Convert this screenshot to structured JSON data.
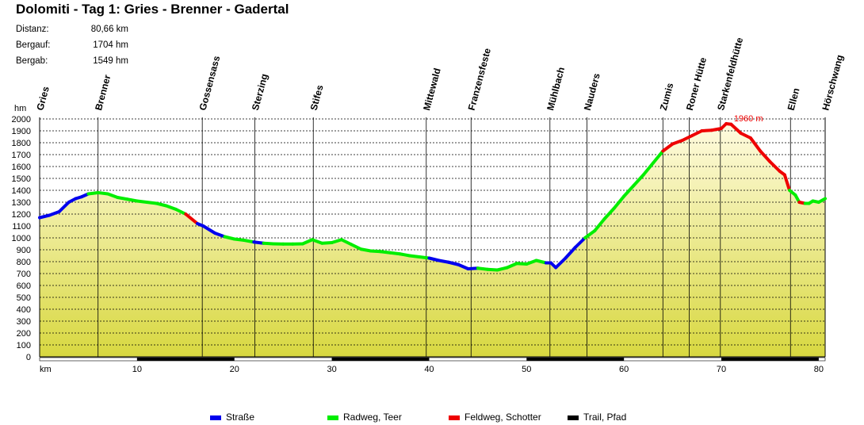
{
  "title": "Dolomiti - Tag 1: Gries - Brenner - Gadertal",
  "stats": [
    {
      "label": "Distanz:",
      "value": "80,66 km"
    },
    {
      "label": "Bergauf:",
      "value": "1704 hm"
    },
    {
      "label": "Bergab:",
      "value": "1549 hm"
    }
  ],
  "chart_data": {
    "type": "area",
    "ylabel": "hm",
    "xlabel": "km",
    "xlim": [
      0,
      80.66
    ],
    "ylim": [
      0,
      2000
    ],
    "xticks": [
      10,
      20,
      30,
      40,
      50,
      60,
      70,
      80
    ],
    "yticks": [
      0,
      100,
      200,
      300,
      400,
      500,
      600,
      700,
      800,
      900,
      1000,
      1100,
      1200,
      1300,
      1400,
      1500,
      1600,
      1700,
      1800,
      1900,
      2000
    ],
    "grid": true,
    "colors": {
      "strasse": "#0000ee",
      "radweg": "#00ee00",
      "feldweg": "#ee0000",
      "trail": "#000000",
      "fill_top": "#fffbe0",
      "fill_bottom": "#d8d840"
    },
    "profile": [
      [
        0,
        1170,
        "s"
      ],
      [
        1,
        1190,
        "s"
      ],
      [
        2,
        1220,
        "s"
      ],
      [
        3,
        1300,
        "s"
      ],
      [
        3.7,
        1330,
        "s"
      ],
      [
        4.3,
        1345,
        "s"
      ],
      [
        5,
        1370,
        "s"
      ],
      [
        6,
        1380,
        "g"
      ],
      [
        7,
        1370,
        "g"
      ],
      [
        8,
        1340,
        "g"
      ],
      [
        9,
        1325,
        "g"
      ],
      [
        10,
        1310,
        "g"
      ],
      [
        11,
        1300,
        "g"
      ],
      [
        12,
        1290,
        "g"
      ],
      [
        13,
        1270,
        "g"
      ],
      [
        14,
        1240,
        "g"
      ],
      [
        15,
        1200,
        "g"
      ],
      [
        16.2,
        1120,
        "r"
      ],
      [
        16.8,
        1100,
        "s"
      ],
      [
        18,
        1040,
        "s"
      ],
      [
        19,
        1010,
        "s"
      ],
      [
        20,
        990,
        "g"
      ],
      [
        21,
        980,
        "g"
      ],
      [
        22,
        965,
        "g"
      ],
      [
        23,
        955,
        "s"
      ],
      [
        24,
        950,
        "g"
      ],
      [
        25,
        948,
        "g"
      ],
      [
        26,
        948,
        "g"
      ],
      [
        27,
        950,
        "g"
      ],
      [
        28,
        985,
        "g"
      ],
      [
        29,
        955,
        "g"
      ],
      [
        30,
        960,
        "g"
      ],
      [
        31,
        985,
        "g"
      ],
      [
        32,
        945,
        "g"
      ],
      [
        33,
        905,
        "g"
      ],
      [
        34,
        890,
        "g"
      ],
      [
        35,
        885,
        "g"
      ],
      [
        36,
        875,
        "g"
      ],
      [
        37,
        865,
        "g"
      ],
      [
        38,
        850,
        "g"
      ],
      [
        39,
        840,
        "g"
      ],
      [
        40,
        830,
        "g"
      ],
      [
        41,
        810,
        "s"
      ],
      [
        42,
        795,
        "s"
      ],
      [
        43,
        775,
        "s"
      ],
      [
        44,
        740,
        "s"
      ],
      [
        45,
        745,
        "s"
      ],
      [
        45.5,
        740,
        "g"
      ],
      [
        46,
        735,
        "g"
      ],
      [
        47,
        730,
        "g"
      ],
      [
        48,
        750,
        "g"
      ],
      [
        49,
        785,
        "g"
      ],
      [
        50,
        780,
        "g"
      ],
      [
        51,
        810,
        "g"
      ],
      [
        52,
        790,
        "g"
      ],
      [
        52.5,
        790,
        "s"
      ],
      [
        53,
        750,
        "s"
      ],
      [
        54,
        830,
        "s"
      ],
      [
        55,
        920,
        "s"
      ],
      [
        56,
        1000,
        "s"
      ],
      [
        57,
        1060,
        "g"
      ],
      [
        58,
        1160,
        "g"
      ],
      [
        59,
        1250,
        "g"
      ],
      [
        60,
        1350,
        "g"
      ],
      [
        61,
        1440,
        "g"
      ],
      [
        62,
        1530,
        "g"
      ],
      [
        63,
        1630,
        "g"
      ],
      [
        64,
        1730,
        "g"
      ],
      [
        65,
        1790,
        "r"
      ],
      [
        66,
        1820,
        "r"
      ],
      [
        67,
        1860,
        "r"
      ],
      [
        68,
        1900,
        "r"
      ],
      [
        69,
        1905,
        "r"
      ],
      [
        70,
        1920,
        "r"
      ],
      [
        70.5,
        1960,
        "r"
      ],
      [
        71,
        1955,
        "r"
      ],
      [
        72,
        1880,
        "r"
      ],
      [
        73,
        1840,
        "r"
      ],
      [
        74,
        1730,
        "r"
      ],
      [
        75,
        1640,
        "r"
      ],
      [
        76,
        1560,
        "r"
      ],
      [
        76.5,
        1530,
        "r"
      ],
      [
        77,
        1400,
        "r"
      ],
      [
        77.6,
        1360,
        "g"
      ],
      [
        78,
        1300,
        "g"
      ],
      [
        78.6,
        1290,
        "r"
      ],
      [
        79,
        1290,
        "g"
      ],
      [
        79.4,
        1310,
        "g"
      ],
      [
        80,
        1300,
        "g"
      ],
      [
        80.66,
        1330,
        "g"
      ]
    ],
    "waypoints": [
      {
        "name": "Gries",
        "km": 0
      },
      {
        "name": "Brenner",
        "km": 6
      },
      {
        "name": "Gossensass",
        "km": 16.7
      },
      {
        "name": "Sterzing",
        "km": 22.1
      },
      {
        "name": "Stifes",
        "km": 28.1
      },
      {
        "name": "Mittewald",
        "km": 39.7
      },
      {
        "name": "Franzensfeste",
        "km": 44.3
      },
      {
        "name": "Mühlbach",
        "km": 52.4
      },
      {
        "name": "Nauders",
        "km": 56.2
      },
      {
        "name": "Zumis",
        "km": 64
      },
      {
        "name": "Roner Hütte",
        "km": 66.7
      },
      {
        "name": "Starkenfeldhütte",
        "km": 69.9
      },
      {
        "name": "Ellen",
        "km": 77.1
      },
      {
        "name": "Hörschwang",
        "km": 80.66
      }
    ],
    "peak_annotation": {
      "text": "1960 m",
      "km": 70.5,
      "value": 1960
    },
    "legend": [
      {
        "label": "Straße",
        "color": "#0000ee"
      },
      {
        "label": "Radweg, Teer",
        "color": "#00ee00"
      },
      {
        "label": "Feldweg, Schotter",
        "color": "#ee0000"
      },
      {
        "label": "Trail, Pfad",
        "color": "#000000"
      }
    ],
    "legend_position": "bottom"
  }
}
